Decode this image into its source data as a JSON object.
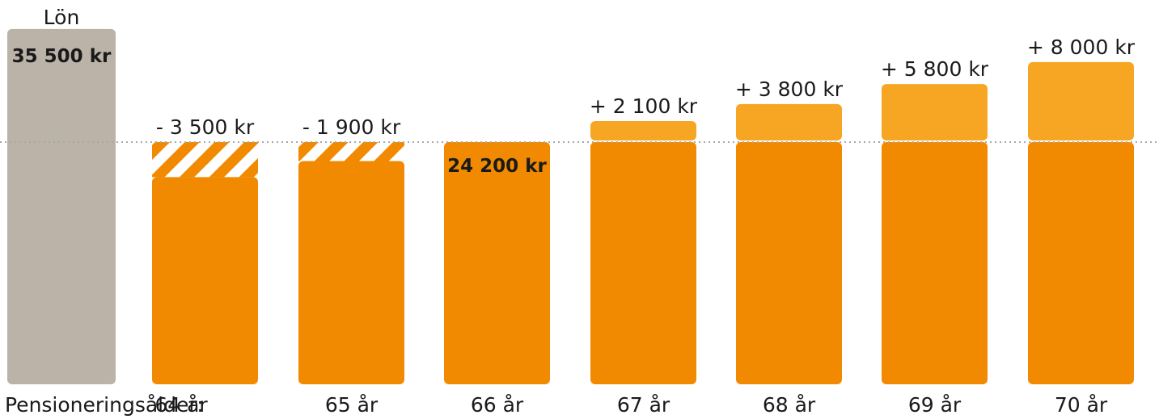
{
  "chart_data": {
    "type": "bar",
    "x_prefix": "Pensioneringsålder:",
    "salary": {
      "label": "Lön",
      "value": 35500,
      "value_label": "35 500 kr"
    },
    "baseline": {
      "age_index": 2,
      "value": 24200,
      "value_label": "24 200 kr"
    },
    "categories": [
      "64 år",
      "65 år",
      "66 år",
      "67 år",
      "68 år",
      "69 år",
      "70 år"
    ],
    "diffs": [
      -3500,
      -1900,
      0,
      2100,
      3800,
      5800,
      8000
    ],
    "diff_labels": [
      "- 3 500 kr",
      "- 1 900 kr",
      "",
      "+ 2 100 kr",
      "+ 3 800 kr",
      "+ 5 800 kr",
      "+ 8 000 kr"
    ],
    "colors": {
      "salary": "#bbb2a8",
      "pension": "#f18a00",
      "increase": "#f6a623",
      "reference_line": "#a8a8a8",
      "text": "#1a1a1a"
    }
  }
}
